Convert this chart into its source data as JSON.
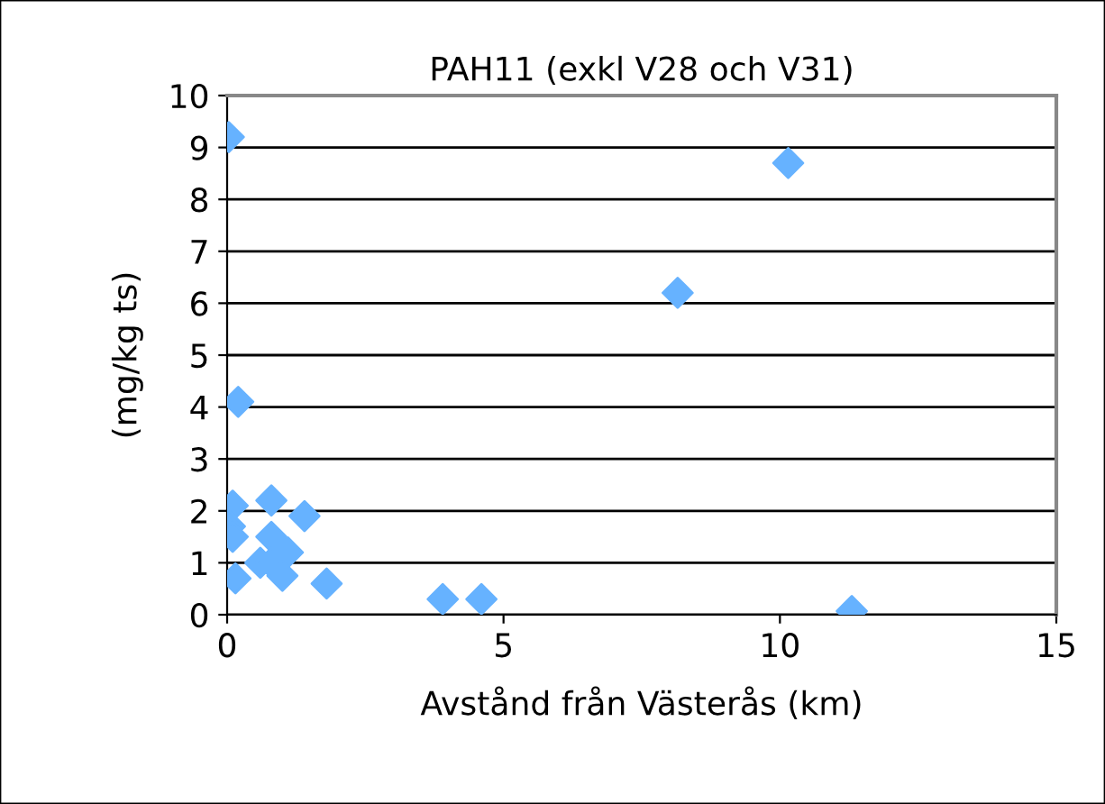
{
  "chart_data": {
    "type": "scatter",
    "title": "PAH11 (exkl V28 och V31)",
    "xlabel": "Avstånd från Västerås (km)",
    "ylabel": "(mg/kg ts)",
    "series": [
      {
        "color": "#66b2ff",
        "x": [
          0.03,
          0.2,
          0.1,
          0.8,
          1.4,
          0.05,
          0.1,
          0.8,
          1.1,
          0.6,
          0.8,
          1.0,
          0.15,
          1.8,
          3.9,
          4.6,
          8.15,
          10.15,
          11.3
        ],
        "values": [
          9.2,
          4.1,
          2.1,
          2.2,
          1.9,
          1.7,
          1.5,
          1.5,
          1.2,
          1.0,
          1.0,
          0.75,
          0.7,
          0.6,
          0.3,
          0.3,
          6.2,
          8.7,
          0.07
        ]
      }
    ],
    "marker": "diamond",
    "xlim": [
      0,
      15
    ],
    "xticks": [
      0,
      5,
      10,
      15
    ],
    "ylim": [
      0,
      10
    ],
    "yticks": [
      0,
      1,
      2,
      3,
      4,
      5,
      6,
      7,
      8,
      9,
      10
    ],
    "grid": "y",
    "legend": false
  }
}
